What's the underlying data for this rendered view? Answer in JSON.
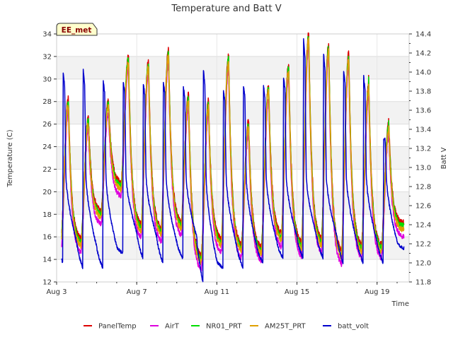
{
  "chart_data": {
    "type": "line",
    "title": "Temperature and Batt V",
    "site_label": "EE_met",
    "xlabel": "Time",
    "ylabel_left": "Temperature (C)",
    "ylabel_right": "Batt V",
    "x_unit": "day of August",
    "xlim": [
      3.0,
      20.6
    ],
    "ylim_left": [
      12,
      34
    ],
    "ylim_right": [
      11.8,
      14.4
    ],
    "x_ticks": [
      {
        "value": 3,
        "label": "Aug 3"
      },
      {
        "value": 7,
        "label": "Aug 7"
      },
      {
        "value": 11,
        "label": "Aug 11"
      },
      {
        "value": 15,
        "label": "Aug 15"
      },
      {
        "value": 19,
        "label": "Aug 19"
      }
    ],
    "y_ticks_left": [
      12,
      14,
      16,
      18,
      20,
      22,
      24,
      26,
      28,
      30,
      32,
      34
    ],
    "y_ticks_right": [
      "11.8",
      "12.0",
      "12.2",
      "12.4",
      "12.6",
      "12.8",
      "13.0",
      "13.2",
      "13.4",
      "13.6",
      "13.8",
      "14.0",
      "14.2",
      "14.4"
    ],
    "daily_temperature": [
      {
        "day": 3,
        "min": 15.5,
        "max": 28.0
      },
      {
        "day": 4,
        "min": 15.5,
        "max": 26.3
      },
      {
        "day": 5,
        "min": 18.0,
        "max": 27.8
      },
      {
        "day": 6,
        "min": 20.5,
        "max": 31.8
      },
      {
        "day": 7,
        "min": 16.8,
        "max": 31.3
      },
      {
        "day": 8,
        "min": 16.5,
        "max": 32.3
      },
      {
        "day": 9,
        "min": 17.0,
        "max": 28.3
      },
      {
        "day": 10,
        "min": 14.0,
        "max": 27.8
      },
      {
        "day": 11,
        "min": 15.5,
        "max": 31.8
      },
      {
        "day": 12,
        "min": 15.0,
        "max": 26.0
      },
      {
        "day": 13,
        "min": 14.8,
        "max": 29.2
      },
      {
        "day": 14,
        "min": 16.0,
        "max": 31.0
      },
      {
        "day": 15,
        "min": 15.2,
        "max": 33.8
      },
      {
        "day": 16,
        "min": 15.5,
        "max": 32.8
      },
      {
        "day": 17,
        "min": 14.5,
        "max": 32.0
      },
      {
        "day": 18,
        "min": 15.0,
        "max": 29.3
      },
      {
        "day": 19,
        "min": 15.0,
        "max": 25.8
      },
      {
        "day": 20,
        "min": 17.0,
        "max": 17.0
      }
    ],
    "daily_batt_volt": [
      {
        "day": 3,
        "min": 12.0,
        "max": 14.0
      },
      {
        "day": 4,
        "min": 11.95,
        "max": 14.02
      },
      {
        "day": 5,
        "min": 11.95,
        "max": 13.9
      },
      {
        "day": 6,
        "min": 12.1,
        "max": 13.9
      },
      {
        "day": 7,
        "min": 12.05,
        "max": 13.88
      },
      {
        "day": 8,
        "min": 12.0,
        "max": 13.9
      },
      {
        "day": 9,
        "min": 12.05,
        "max": 13.85
      },
      {
        "day": 10,
        "min": 11.8,
        "max": 14.02
      },
      {
        "day": 11,
        "min": 11.95,
        "max": 13.8
      },
      {
        "day": 12,
        "min": 11.95,
        "max": 13.85
      },
      {
        "day": 13,
        "min": 12.0,
        "max": 13.85
      },
      {
        "day": 14,
        "min": 12.05,
        "max": 13.95
      },
      {
        "day": 15,
        "min": 12.05,
        "max": 14.35
      },
      {
        "day": 16,
        "min": 12.05,
        "max": 14.2
      },
      {
        "day": 17,
        "min": 12.0,
        "max": 14.02
      },
      {
        "day": 18,
        "min": 12.0,
        "max": 13.95
      },
      {
        "day": 19,
        "min": 12.0,
        "max": 13.3
      },
      {
        "day": 20,
        "min": 12.15,
        "max": 12.15
      }
    ],
    "series": [
      {
        "name": "PanelTemp",
        "color": "#dd0000",
        "axis": "left",
        "offset_c": 0.3
      },
      {
        "name": "AirT",
        "color": "#dd00dd",
        "axis": "left",
        "offset_c": -0.9
      },
      {
        "name": "NR01_PRT",
        "color": "#00dd00",
        "axis": "left",
        "offset_c": 0.0
      },
      {
        "name": "AM25T_PRT",
        "color": "#e0a000",
        "axis": "left",
        "offset_c": -0.3
      },
      {
        "name": "batt_volt",
        "color": "#0000cc",
        "axis": "right",
        "offset_c": 0.0
      }
    ],
    "legend_position": "bottom"
  }
}
